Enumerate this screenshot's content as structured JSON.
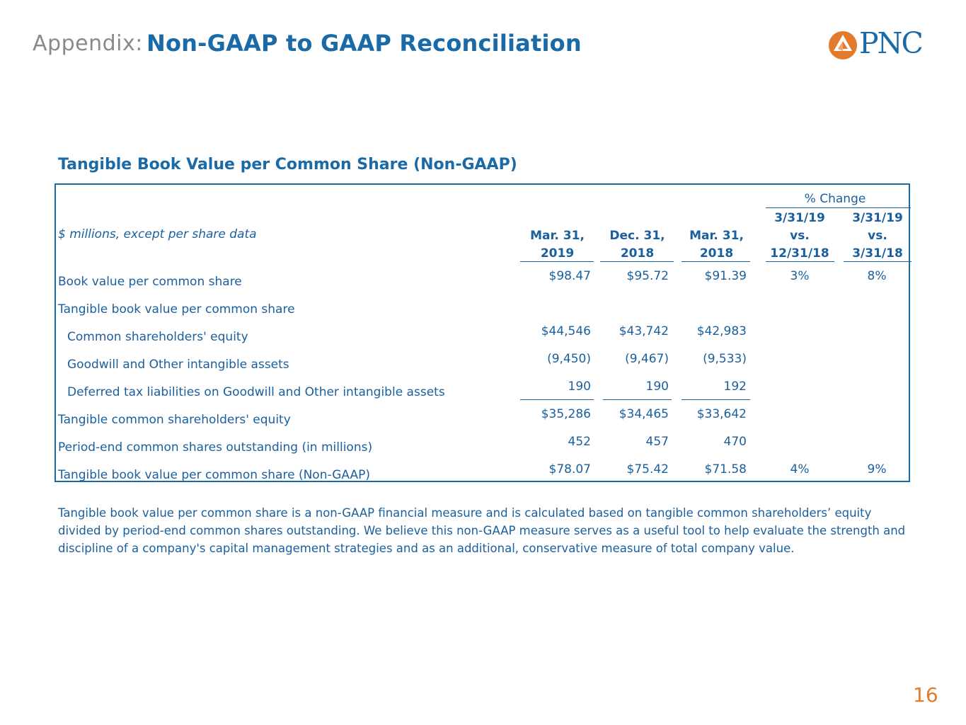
{
  "header": {
    "prefix": "Appendix:",
    "title": "Non-GAAP to GAAP Reconciliation"
  },
  "logo": {
    "text": "PNC",
    "icon": "pnc-triangle-logo-icon",
    "accent": "#e37b2c",
    "brand": "#1a6aa8"
  },
  "section_title": "Tangible Book Value per Common Share (Non-GAAP)",
  "table": {
    "units_label": "$ millions, except per share data",
    "pct_change_header": "% Change",
    "columns": [
      {
        "line1": "Mar. 31,",
        "line2": "2019"
      },
      {
        "line1": "Dec. 31,",
        "line2": "2018"
      },
      {
        "line1": "Mar. 31,",
        "line2": "2018"
      }
    ],
    "pct_columns": [
      {
        "line1": "3/31/19",
        "line2": "vs.",
        "line3": "12/31/18"
      },
      {
        "line1": "3/31/19",
        "line2": "vs.",
        "line3": "3/31/18"
      }
    ],
    "rows": [
      {
        "label": "Book value per common share",
        "v1": "$98.47",
        "v2": "$95.72",
        "v3": "$91.39",
        "p1": "3%",
        "p2": "8%"
      },
      {
        "label": "Tangible book value per common share",
        "v1": "",
        "v2": "",
        "v3": "",
        "p1": "",
        "p2": ""
      },
      {
        "label": "Common shareholders' equity",
        "v1": "$44,546",
        "v2": "$43,742",
        "v3": "$42,983",
        "p1": "",
        "p2": ""
      },
      {
        "label": "Goodwill and Other intangible assets",
        "v1": "(9,450)",
        "v2": "(9,467)",
        "v3": "(9,533)",
        "p1": "",
        "p2": ""
      },
      {
        "label": "Deferred tax liabilities on Goodwill and Other intangible assets",
        "v1": "190",
        "v2": "190",
        "v3": "192",
        "p1": "",
        "p2": ""
      },
      {
        "label": "Tangible common shareholders' equity",
        "v1": "$35,286",
        "v2": "$34,465",
        "v3": "$33,642",
        "p1": "",
        "p2": ""
      },
      {
        "label": "Period-end common shares outstanding (in millions)",
        "v1": "452",
        "v2": "457",
        "v3": "470",
        "p1": "",
        "p2": ""
      },
      {
        "label": "Tangible book value per common share (Non-GAAP)",
        "v1": "$78.07",
        "v2": "$75.42",
        "v3": "$71.58",
        "p1": "4%",
        "p2": "9%"
      }
    ]
  },
  "footnote": "Tangible book value per common share is a non-GAAP financial measure and is calculated based on tangible common shareholders’ equity divided by period-end common shares outstanding. We believe this non-GAAP measure serves as a useful tool to help evaluate the strength and discipline of a company's capital management strategies and as an additional, conservative measure of total company value.",
  "page_number": "16"
}
